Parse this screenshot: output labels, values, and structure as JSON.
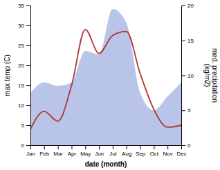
{
  "chart_data": {
    "type": "line",
    "categories": [
      "Jan",
      "Feb",
      "Mar",
      "Apr",
      "May",
      "Jun",
      "Jul",
      "Aug",
      "Sep",
      "Oct",
      "Nov",
      "Dec"
    ],
    "series": [
      {
        "type": "area",
        "axis": "y2",
        "color": "#b8c4e8",
        "values": [
          7.5,
          9.0,
          8.5,
          9.0,
          13.5,
          13.0,
          19.5,
          17.5,
          7.5,
          5.0,
          7.0,
          9.0
        ]
      },
      {
        "type": "line",
        "color": "#b03535",
        "values": [
          4.0,
          8.5,
          6.0,
          15.0,
          29.0,
          23.0,
          27.5,
          28.5,
          18.0,
          9.0,
          4.5,
          5.0
        ]
      }
    ],
    "xlabel": "date (month)",
    "ylabel": "max temp (C)",
    "y2label": "med. precipitation\n(kg/m2)",
    "ylim": [
      0,
      35
    ],
    "yticks": [
      0,
      5,
      10,
      15,
      20,
      25,
      30,
      35
    ],
    "y2lim": [
      0,
      20
    ],
    "y2ticks": [
      0,
      5,
      10,
      15,
      20
    ],
    "grid": false
  }
}
